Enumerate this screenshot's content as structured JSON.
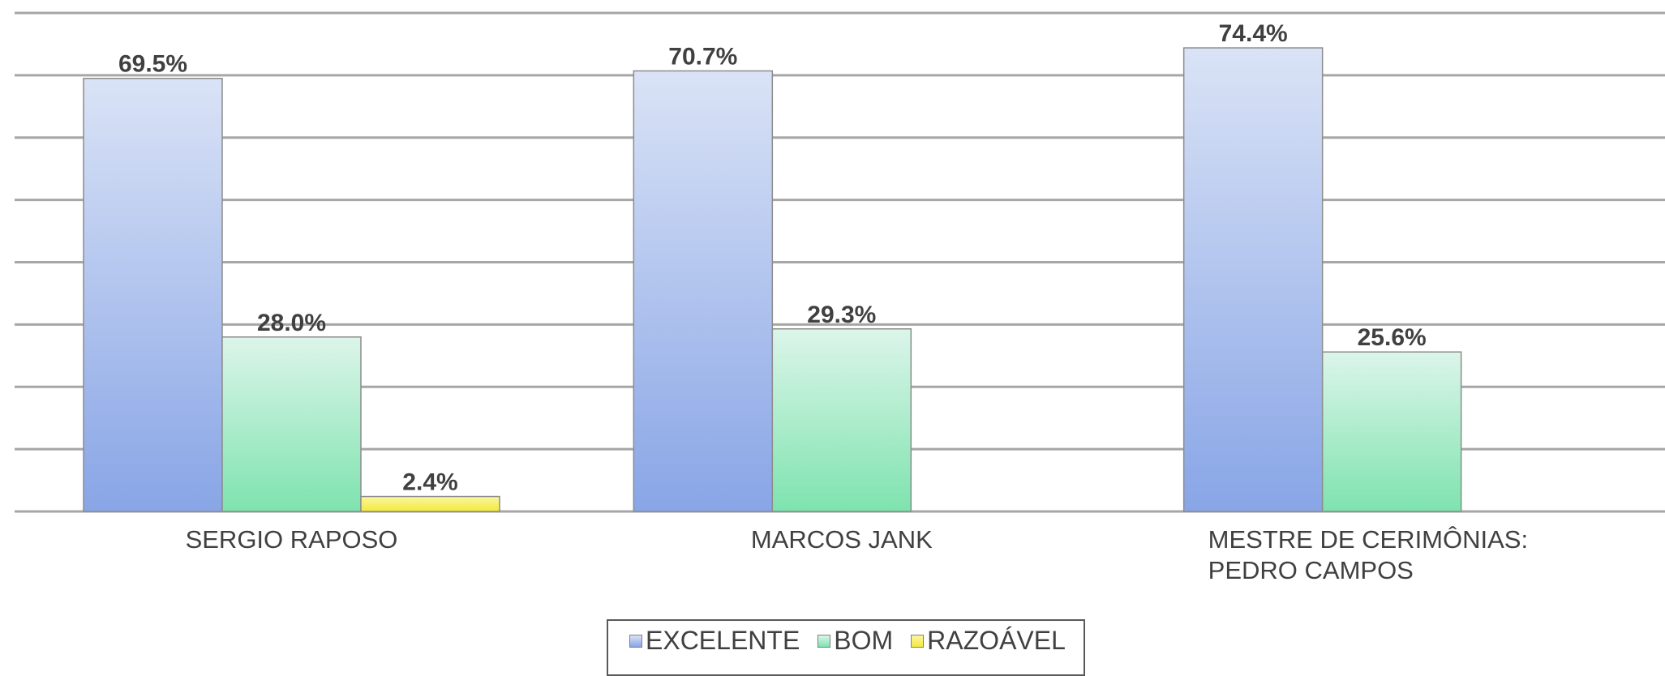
{
  "chart_data": {
    "type": "bar",
    "categories": [
      [
        "SERGIO RAPOSO"
      ],
      [
        "MARCOS JANK"
      ],
      [
        "MESTRE DE CERIMÔNIAS:",
        "PEDRO CAMPOS"
      ]
    ],
    "series": [
      {
        "name": "EXCELENTE",
        "values": [
          69.5,
          70.7,
          74.4
        ],
        "labels": [
          "69.5%",
          "70.7%",
          "74.4%"
        ],
        "color_top": "#dae3f6",
        "color_bottom": "#88a5e6"
      },
      {
        "name": "BOM",
        "values": [
          28.0,
          29.3,
          25.6
        ],
        "labels": [
          "28.0%",
          "29.3%",
          "25.6%"
        ],
        "color_top": "#dcf5ea",
        "color_bottom": "#7ee3ae"
      },
      {
        "name": "RAZOÁVEL",
        "values": [
          2.4,
          null,
          null
        ],
        "labels": [
          "2.4%",
          "",
          ""
        ],
        "color_top": "#fbf6a0",
        "color_bottom": "#f3ea3c"
      }
    ],
    "ylim": [
      0,
      80
    ],
    "grid": true,
    "legend_position": "bottom",
    "title": "",
    "xlabel": "",
    "ylabel": ""
  }
}
